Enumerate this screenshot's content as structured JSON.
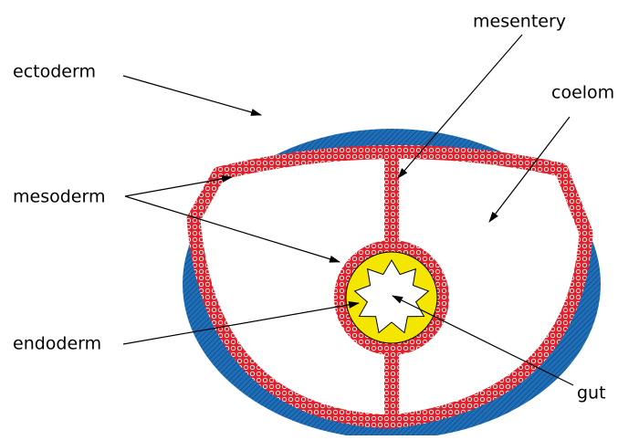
{
  "labels": {
    "ectoderm": "ectoderm",
    "mesentery": "mesentery",
    "coelom": "coelom",
    "mesoderm": "mesoderm",
    "endoderm": "endoderm",
    "gut": "gut"
  }
}
